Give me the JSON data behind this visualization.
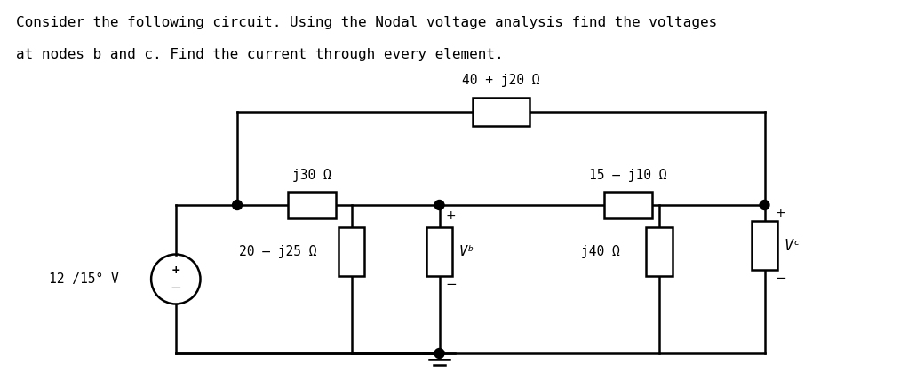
{
  "title_line1": "Consider the following circuit. Using the Nodal voltage analysis find the voltages",
  "title_line2": "at nodes b and c. Find the current through every element.",
  "bg_color": "#ffffff",
  "text_color": "#000000",
  "line_color": "#000000",
  "font_family": "monospace",
  "impedances": {
    "top": "40 + j20 Ω",
    "left_series": "j30 Ω",
    "right_series": "15 – j10 Ω",
    "source": "12 /15° V",
    "shunt_left": "20 – j25 Ω",
    "shunt_vb": "Vᵇ",
    "shunt_j40": "j40 Ω",
    "shunt_vc": "Vᶜ"
  }
}
